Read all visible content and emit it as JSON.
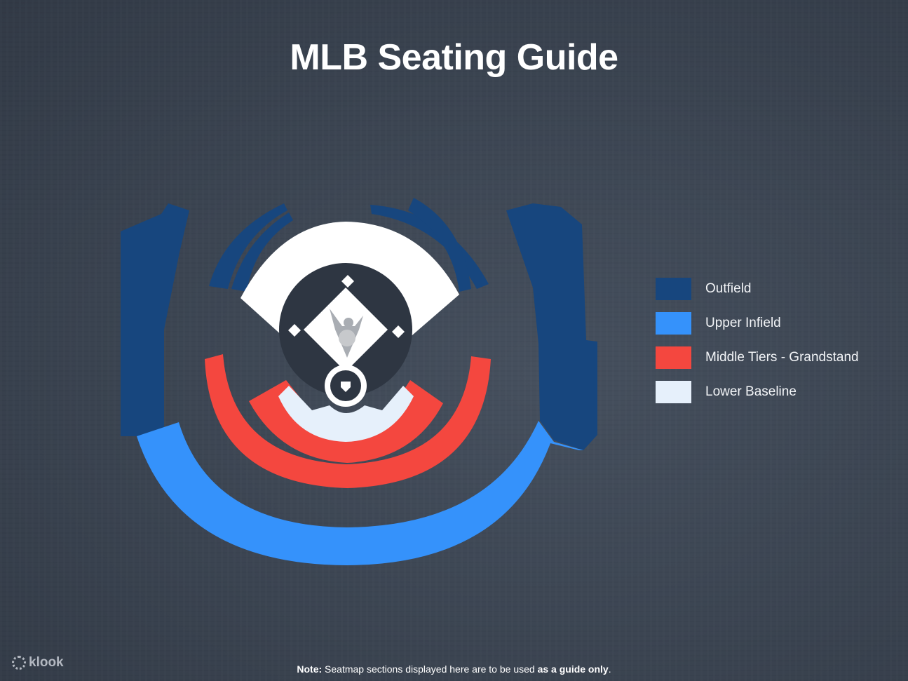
{
  "title": "MLB Seating Guide",
  "legend": [
    {
      "label": "Outfield",
      "color": "#17467e"
    },
    {
      "label": "Upper Infield",
      "color": "#3592fb"
    },
    {
      "label": "Middle Tiers - Grandstand",
      "color": "#f4473f"
    },
    {
      "label": "Lower Baseline",
      "color": "#e6f0fb"
    }
  ],
  "brand": "klook",
  "note": {
    "prefix": "Note:",
    "text": " Seatmap sections displayed here are to be used ",
    "emphasis": "as a guide only",
    "suffix": "."
  }
}
